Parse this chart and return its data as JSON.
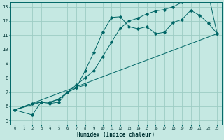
{
  "xlabel": "Humidex (Indice chaleur)",
  "xlim": [
    -0.5,
    23.5
  ],
  "ylim": [
    4.7,
    13.3
  ],
  "xticks": [
    0,
    1,
    2,
    3,
    4,
    5,
    6,
    7,
    8,
    9,
    10,
    11,
    12,
    13,
    14,
    15,
    16,
    17,
    18,
    19,
    20,
    21,
    22,
    23
  ],
  "yticks": [
    5,
    6,
    7,
    8,
    9,
    10,
    11,
    12,
    13
  ],
  "background_color": "#c5e8e2",
  "grid_color": "#9dccc4",
  "line_color": "#006666",
  "line1_x": [
    0,
    2,
    3,
    4,
    5,
    6,
    7,
    8,
    9,
    10,
    11,
    12,
    13,
    14,
    15,
    16,
    17,
    18,
    19,
    20,
    21,
    22,
    23
  ],
  "line1_y": [
    5.75,
    6.2,
    6.3,
    6.2,
    6.3,
    7.0,
    7.3,
    8.5,
    9.8,
    11.2,
    12.25,
    12.3,
    11.6,
    11.45,
    11.6,
    11.1,
    11.2,
    11.9,
    12.1,
    12.75,
    12.4,
    11.85,
    11.1
  ],
  "line2_x": [
    0,
    2,
    3,
    4,
    5,
    6,
    7,
    8
  ],
  "line2_y": [
    5.75,
    5.4,
    6.3,
    6.3,
    6.5,
    7.0,
    7.3,
    7.5
  ],
  "line3_x": [
    0,
    3,
    4,
    5,
    6,
    7,
    8,
    9,
    10,
    11,
    12,
    13,
    14,
    15,
    16,
    17,
    18,
    19,
    20,
    21,
    22,
    23
  ],
  "line3_y": [
    5.75,
    6.3,
    6.3,
    6.5,
    7.0,
    7.5,
    8.0,
    8.5,
    9.5,
    10.5,
    11.5,
    12.0,
    12.2,
    12.5,
    12.7,
    12.8,
    13.0,
    13.3,
    13.5,
    13.7,
    13.9,
    11.1
  ],
  "refline_x": [
    0,
    23
  ],
  "refline_y": [
    5.75,
    11.1
  ]
}
